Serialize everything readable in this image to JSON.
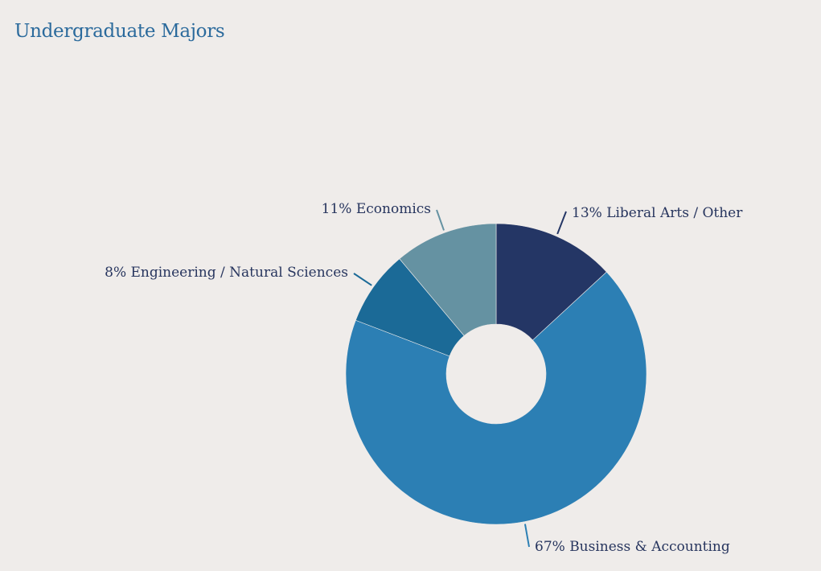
{
  "title": "Undergraduate Majors",
  "chart_data": {
    "type": "pie",
    "style": "donut",
    "title": "Undergraduate Majors",
    "slices": [
      {
        "label": "13% Liberal Arts / Other",
        "category": "Liberal Arts / Other",
        "value": 13,
        "color": "#243665"
      },
      {
        "label": "67% Business & Accounting",
        "category": "Business & Accounting",
        "value": 67,
        "color": "#2c7fb4"
      },
      {
        "label": "8% Engineering / Natural Sciences",
        "category": "Engineering / Natural Sciences",
        "value": 8,
        "color": "#1b6a97"
      },
      {
        "label": "11% Economics",
        "category": "Economics",
        "value": 11,
        "color": "#6592a2"
      }
    ],
    "start_angle": "12 o'clock",
    "direction": "clockwise",
    "legend": "none",
    "labels": "outside with leader lines"
  },
  "colors": {
    "background": "#efecea",
    "title": "#2b6a9c",
    "label_text": "#27355e"
  }
}
